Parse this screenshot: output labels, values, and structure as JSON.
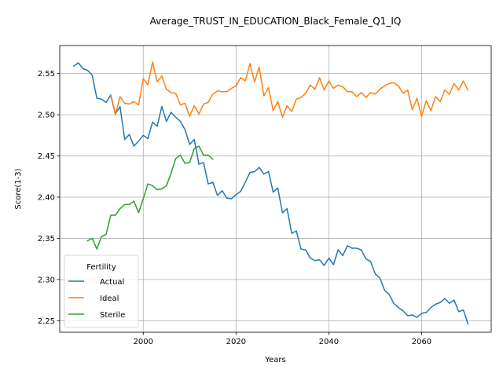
{
  "chart_data": {
    "type": "line",
    "title": "Average_TRUST_IN_EDUCATION_Black_Female_Q1_IQ",
    "xlabel": "Years",
    "ylabel": "Score(1-3)",
    "xlim": [
      1982,
      2075
    ],
    "ylim": [
      2.236,
      2.584
    ],
    "xticks": [
      2000,
      2020,
      2040,
      2060
    ],
    "yticks": [
      2.25,
      2.3,
      2.35,
      2.4,
      2.45,
      2.5,
      2.55
    ],
    "grid": true,
    "legend": {
      "title": "Fertility",
      "location": "lower-left"
    },
    "series": [
      {
        "name": "Actual",
        "color": "#1f77b4",
        "x": [
          1985,
          1986,
          1987,
          1988,
          1989,
          1990,
          1991,
          1992,
          1993,
          1994,
          1995,
          1996,
          1997,
          1998,
          1999,
          2000,
          2001,
          2002,
          2003,
          2004,
          2005,
          2006,
          2007,
          2008,
          2009,
          2010,
          2011,
          2012,
          2013,
          2014,
          2015,
          2016,
          2017,
          2018,
          2019,
          2020,
          2021,
          2022,
          2023,
          2024,
          2025,
          2026,
          2027,
          2028,
          2029,
          2030,
          2031,
          2032,
          2033,
          2034,
          2035,
          2036,
          2037,
          2038,
          2039,
          2040,
          2041,
          2042,
          2043,
          2044,
          2045,
          2046,
          2047,
          2048,
          2049,
          2050,
          2051,
          2052,
          2053,
          2054,
          2055,
          2056,
          2057,
          2058,
          2059,
          2060,
          2061,
          2062,
          2063,
          2064,
          2065,
          2066,
          2067,
          2068,
          2069,
          2070
        ],
        "y": [
          2.559,
          2.563,
          2.556,
          2.554,
          2.548,
          2.52,
          2.519,
          2.515,
          2.524,
          2.501,
          2.51,
          2.47,
          2.476,
          2.462,
          2.468,
          2.475,
          2.471,
          2.491,
          2.486,
          2.51,
          2.492,
          2.503,
          2.497,
          2.492,
          2.482,
          2.464,
          2.47,
          2.44,
          2.442,
          2.416,
          2.418,
          2.402,
          2.408,
          2.399,
          2.398,
          2.403,
          2.407,
          2.418,
          2.43,
          2.431,
          2.436,
          2.428,
          2.431,
          2.406,
          2.411,
          2.381,
          2.386,
          2.356,
          2.359,
          2.337,
          2.336,
          2.326,
          2.323,
          2.324,
          2.317,
          2.326,
          2.318,
          2.336,
          2.329,
          2.341,
          2.338,
          2.338,
          2.336,
          2.325,
          2.322,
          2.307,
          2.302,
          2.287,
          2.282,
          2.271,
          2.266,
          2.262,
          2.256,
          2.257,
          2.254,
          2.259,
          2.26,
          2.266,
          2.27,
          2.272,
          2.277,
          2.271,
          2.275,
          2.261,
          2.263,
          2.246
        ]
      },
      {
        "name": "Ideal",
        "color": "#ff7f0e",
        "x": [
          1993,
          1994,
          1995,
          1996,
          1997,
          1998,
          1999,
          2000,
          2001,
          2002,
          2003,
          2004,
          2005,
          2006,
          2007,
          2008,
          2009,
          2010,
          2011,
          2012,
          2013,
          2014,
          2015,
          2016,
          2017,
          2018,
          2019,
          2020,
          2021,
          2022,
          2023,
          2024,
          2025,
          2026,
          2027,
          2028,
          2029,
          2030,
          2031,
          2032,
          2033,
          2034,
          2035,
          2036,
          2037,
          2038,
          2039,
          2040,
          2041,
          2042,
          2043,
          2044,
          2045,
          2046,
          2047,
          2048,
          2049,
          2050,
          2051,
          2052,
          2053,
          2054,
          2055,
          2056,
          2057,
          2058,
          2059,
          2060,
          2061,
          2062,
          2063,
          2064,
          2065,
          2066,
          2067,
          2068,
          2069,
          2070
        ],
        "y": [
          2.523,
          2.5,
          2.522,
          2.514,
          2.513,
          2.516,
          2.512,
          2.544,
          2.536,
          2.564,
          2.54,
          2.547,
          2.531,
          2.527,
          2.526,
          2.512,
          2.514,
          2.498,
          2.511,
          2.501,
          2.513,
          2.515,
          2.525,
          2.529,
          2.528,
          2.528,
          2.532,
          2.535,
          2.545,
          2.541,
          2.562,
          2.54,
          2.558,
          2.523,
          2.533,
          2.505,
          2.516,
          2.497,
          2.511,
          2.504,
          2.519,
          2.521,
          2.526,
          2.536,
          2.531,
          2.545,
          2.53,
          2.541,
          2.532,
          2.536,
          2.534,
          2.528,
          2.528,
          2.522,
          2.527,
          2.521,
          2.527,
          2.525,
          2.531,
          2.535,
          2.538,
          2.539,
          2.535,
          2.526,
          2.53,
          2.506,
          2.52,
          2.498,
          2.517,
          2.505,
          2.522,
          2.516,
          2.53,
          2.525,
          2.538,
          2.53,
          2.541,
          2.53
        ]
      },
      {
        "name": "Sterile",
        "color": "#2ca02c",
        "x": [
          1988,
          1989,
          1990,
          1991,
          1992,
          1993,
          1994,
          1995,
          1996,
          1997,
          1998,
          1999,
          2000,
          2001,
          2002,
          2003,
          2004,
          2005,
          2006,
          2007,
          2008,
          2009,
          2010,
          2011,
          2012,
          2013,
          2014,
          2015
        ],
        "y": [
          2.347,
          2.35,
          2.337,
          2.352,
          2.355,
          2.378,
          2.378,
          2.386,
          2.391,
          2.391,
          2.395,
          2.381,
          2.398,
          2.416,
          2.414,
          2.409,
          2.41,
          2.414,
          2.429,
          2.447,
          2.451,
          2.441,
          2.442,
          2.459,
          2.462,
          2.451,
          2.451,
          2.446
        ]
      }
    ]
  }
}
